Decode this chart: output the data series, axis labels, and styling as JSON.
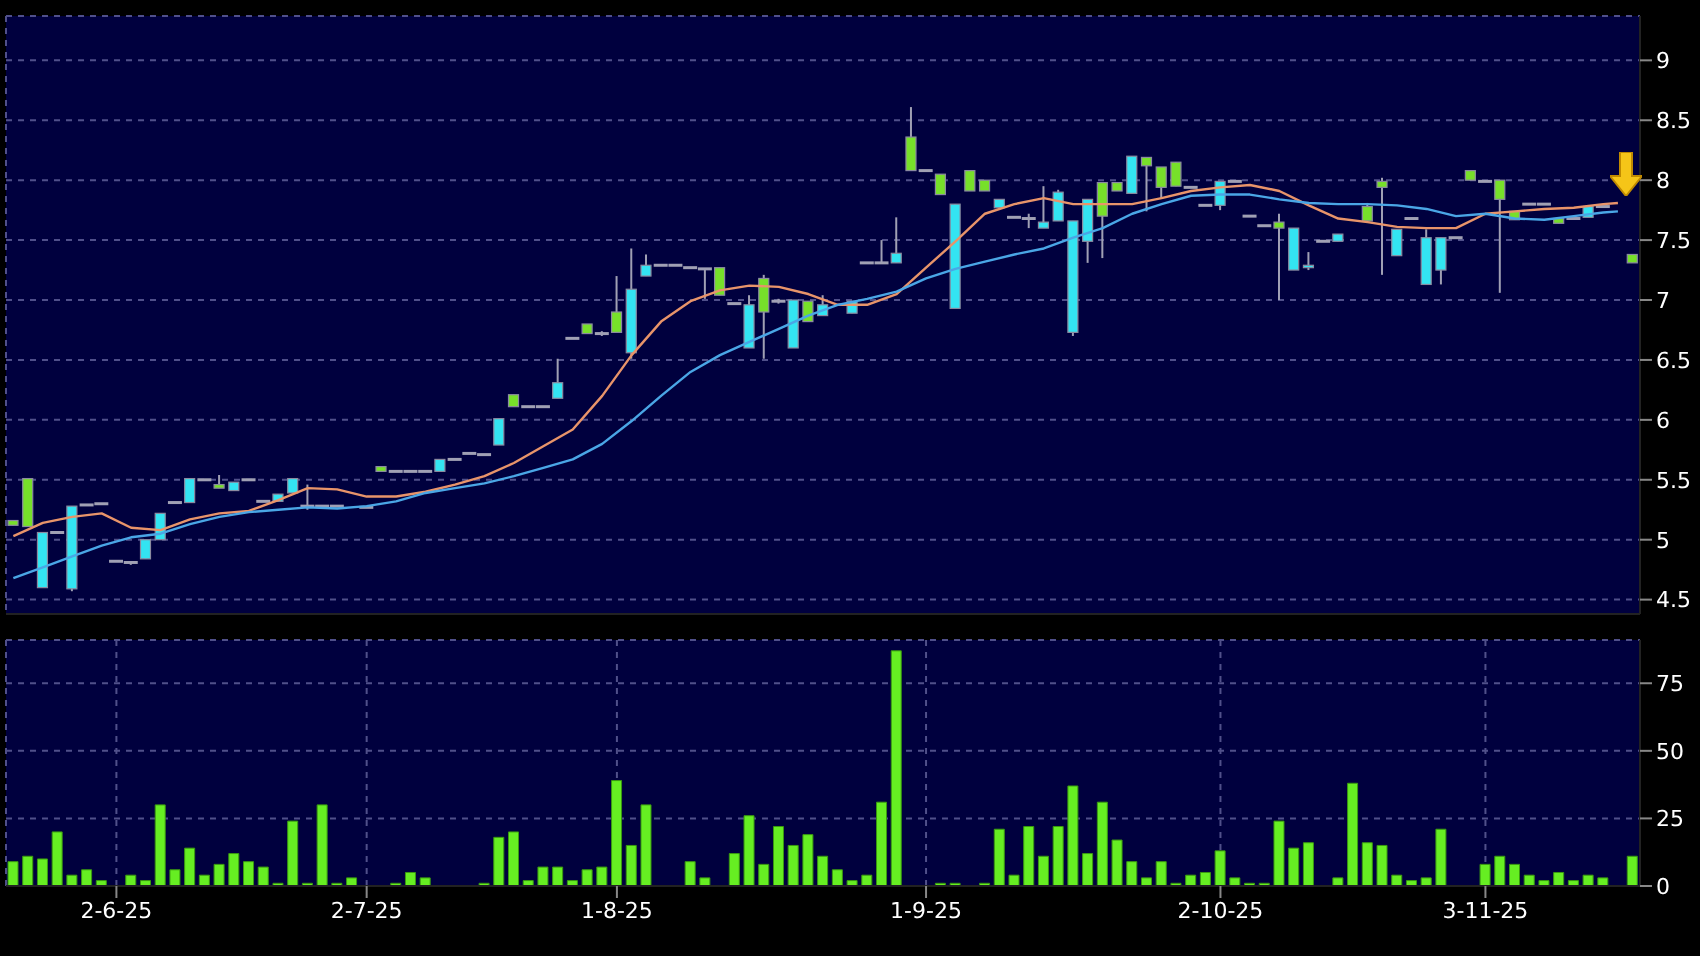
{
  "chart_data": [
    {
      "type": "candlestick",
      "tick_labels": "y",
      "grid": true,
      "ylim": [
        4.38,
        9.37
      ],
      "yticks": [
        4.5,
        5,
        5.5,
        6,
        6.5,
        7,
        7.5,
        8,
        8.5,
        9
      ],
      "categories": [
        null,
        null,
        null,
        null,
        null,
        null,
        null,
        null,
        null,
        null,
        null,
        null,
        null,
        null,
        null,
        null,
        null,
        null,
        null,
        null,
        null,
        null,
        null,
        null,
        null,
        null,
        null,
        null,
        null,
        null,
        null,
        null,
        null,
        null,
        null,
        null,
        null,
        null,
        null,
        null,
        null,
        null,
        null,
        null,
        null,
        null,
        null,
        null,
        null,
        null,
        null,
        null,
        null,
        null,
        null,
        null,
        null,
        null,
        null,
        null,
        null,
        null,
        null,
        null,
        null,
        null,
        null,
        null,
        null,
        null,
        null,
        null,
        null,
        null,
        null,
        null,
        null,
        null,
        null,
        null,
        null,
        null,
        null,
        null,
        null,
        null,
        null,
        null,
        null,
        null,
        null,
        null,
        null,
        null,
        null,
        null,
        null,
        null,
        null,
        null,
        null,
        null,
        null,
        null,
        null,
        null,
        null,
        null,
        null,
        null,
        null
      ],
      "ohlc": [
        [
          5.16,
          5.16,
          5.12,
          5.12
        ],
        [
          5.51,
          5.51,
          5.11,
          5.11
        ],
        [
          4.6,
          5.06,
          4.6,
          5.06
        ],
        [
          5.06,
          5.06,
          5.06,
          5.06
        ],
        [
          4.59,
          5.28,
          4.57,
          5.28
        ],
        [
          5.29,
          5.29,
          5.29,
          5.29
        ],
        [
          5.3,
          5.3,
          5.3,
          5.3
        ],
        [
          4.82,
          4.82,
          4.82,
          4.82
        ],
        [
          4.81,
          4.81,
          4.79,
          4.81
        ],
        [
          4.84,
          5.0,
          4.84,
          5.0
        ],
        [
          5.0,
          5.22,
          5.0,
          5.22
        ],
        [
          5.31,
          5.31,
          5.31,
          5.31
        ],
        [
          5.31,
          5.51,
          5.31,
          5.51
        ],
        [
          5.5,
          5.5,
          5.5,
          5.5
        ],
        [
          5.46,
          5.54,
          5.43,
          5.43
        ],
        [
          5.41,
          5.48,
          5.41,
          5.48
        ],
        [
          5.5,
          5.5,
          5.5,
          5.5
        ],
        [
          5.32,
          5.32,
          5.32,
          5.32
        ],
        [
          5.32,
          5.38,
          5.32,
          5.38
        ],
        [
          5.39,
          5.51,
          5.39,
          5.51
        ],
        [
          5.28,
          5.46,
          5.25,
          5.28
        ],
        [
          5.28,
          5.28,
          5.28,
          5.28
        ],
        [
          5.28,
          5.28,
          5.28,
          5.28
        ],
        null,
        [
          5.27,
          5.27,
          5.27,
          5.27
        ],
        [
          5.61,
          5.61,
          5.57,
          5.57
        ],
        [
          5.57,
          5.57,
          5.57,
          5.57
        ],
        [
          5.57,
          5.57,
          5.57,
          5.57
        ],
        [
          5.57,
          5.57,
          5.57,
          5.57
        ],
        [
          5.57,
          5.67,
          5.57,
          5.67
        ],
        [
          5.67,
          5.67,
          5.67,
          5.67
        ],
        [
          5.72,
          5.72,
          5.72,
          5.72
        ],
        [
          5.71,
          5.71,
          5.71,
          5.71
        ],
        [
          5.79,
          6.01,
          5.79,
          6.01
        ],
        [
          6.21,
          6.21,
          6.11,
          6.11
        ],
        [
          6.11,
          6.11,
          6.11,
          6.11
        ],
        [
          6.11,
          6.11,
          6.11,
          6.11
        ],
        [
          6.18,
          6.51,
          6.18,
          6.31
        ],
        [
          6.68,
          6.68,
          6.68,
          6.68
        ],
        [
          6.8,
          6.8,
          6.72,
          6.72
        ],
        [
          6.72,
          6.74,
          6.7,
          6.72
        ],
        [
          6.9,
          7.2,
          6.73,
          6.73
        ],
        [
          6.56,
          7.43,
          6.51,
          7.09
        ],
        [
          7.2,
          7.38,
          7.2,
          7.29
        ],
        [
          7.29,
          7.29,
          7.29,
          7.29
        ],
        [
          7.29,
          7.29,
          7.29,
          7.29
        ],
        [
          7.27,
          7.27,
          7.27,
          7.27
        ],
        [
          7.26,
          7.26,
          7.01,
          7.26
        ],
        [
          7.27,
          7.27,
          7.04,
          7.04
        ],
        [
          6.97,
          6.97,
          6.97,
          6.97
        ],
        [
          6.6,
          7.04,
          6.6,
          6.96
        ],
        [
          7.18,
          7.21,
          6.51,
          6.9
        ],
        [
          6.99,
          7.01,
          6.97,
          6.99
        ],
        [
          6.6,
          7.0,
          6.6,
          7.0
        ],
        [
          6.99,
          6.99,
          6.82,
          6.82
        ],
        [
          6.87,
          7.04,
          6.87,
          6.96
        ],
        null,
        [
          6.89,
          6.99,
          6.89,
          6.99
        ],
        [
          7.31,
          7.31,
          7.31,
          7.31
        ],
        [
          7.31,
          7.5,
          7.31,
          7.31
        ],
        [
          7.31,
          7.69,
          7.31,
          7.39
        ],
        [
          8.36,
          8.61,
          8.08,
          8.08
        ],
        [
          8.08,
          8.08,
          8.08,
          8.08
        ],
        [
          8.05,
          8.05,
          7.88,
          7.88
        ],
        [
          6.93,
          7.8,
          6.93,
          7.8
        ],
        [
          8.08,
          8.08,
          7.91,
          7.91
        ],
        [
          8.0,
          8.0,
          7.91,
          7.91
        ],
        [
          7.77,
          7.84,
          7.77,
          7.84
        ],
        [
          7.69,
          7.69,
          7.69,
          7.69
        ],
        [
          7.68,
          7.72,
          7.6,
          7.68
        ],
        [
          7.6,
          7.95,
          7.6,
          7.65
        ],
        [
          7.66,
          7.92,
          7.66,
          7.9
        ],
        [
          6.73,
          7.66,
          6.7,
          7.66
        ],
        [
          7.49,
          7.84,
          7.31,
          7.84
        ],
        [
          7.98,
          7.98,
          7.35,
          7.7
        ],
        [
          7.98,
          7.98,
          7.91,
          7.91
        ],
        [
          7.89,
          8.2,
          7.89,
          8.2
        ],
        [
          8.19,
          8.19,
          7.74,
          8.12
        ],
        [
          8.11,
          8.11,
          7.85,
          7.94
        ],
        [
          8.15,
          8.15,
          7.95,
          7.95
        ],
        [
          7.94,
          7.94,
          7.94,
          7.94
        ],
        [
          7.79,
          7.79,
          7.79,
          7.79
        ],
        [
          7.79,
          7.99,
          7.75,
          7.99
        ],
        [
          7.99,
          7.99,
          7.99,
          7.99
        ],
        [
          7.7,
          7.7,
          7.7,
          7.7
        ],
        [
          7.62,
          7.62,
          7.62,
          7.62
        ],
        [
          7.65,
          7.72,
          7.0,
          7.6
        ],
        [
          7.25,
          7.6,
          7.25,
          7.6
        ],
        [
          7.27,
          7.4,
          7.25,
          7.29
        ],
        [
          7.49,
          7.49,
          7.49,
          7.49
        ],
        [
          7.49,
          7.55,
          7.49,
          7.55
        ],
        null,
        [
          7.78,
          7.81,
          7.66,
          7.66
        ],
        [
          7.99,
          8.02,
          7.21,
          7.94
        ],
        [
          7.37,
          7.59,
          7.37,
          7.59
        ],
        [
          7.68,
          7.68,
          7.68,
          7.68
        ],
        [
          7.13,
          7.59,
          7.13,
          7.52
        ],
        [
          7.25,
          7.52,
          7.13,
          7.52
        ],
        [
          7.52,
          7.52,
          7.52,
          7.52
        ],
        [
          8.08,
          8.08,
          8.0,
          8.0
        ],
        [
          7.99,
          7.99,
          7.99,
          7.99
        ],
        [
          8.0,
          8.0,
          7.06,
          7.84
        ],
        [
          7.74,
          7.74,
          7.67,
          7.67
        ],
        [
          7.8,
          7.8,
          7.8,
          7.8
        ],
        [
          7.8,
          7.8,
          7.8,
          7.8
        ],
        [
          7.68,
          7.68,
          7.64,
          7.64
        ],
        [
          7.68,
          7.68,
          7.68,
          7.68
        ],
        [
          7.69,
          7.78,
          7.69,
          7.78
        ],
        [
          7.78,
          7.78,
          7.78,
          7.78
        ],
        null,
        [
          7.38,
          7.38,
          7.31,
          7.31
        ]
      ],
      "colors": [
        "#77e02a",
        "#77e02a",
        "#33e4f2",
        "#a0a0b4",
        "#33e4f2",
        "#a0a0b4",
        "#a0a0b4",
        "#a0a0b4",
        "#a0a0b4",
        "#33e4f2",
        "#33e4f2",
        "#a0a0b4",
        "#33e4f2",
        "#a0a0b4",
        "#77e02a",
        "#33e4f2",
        "#a0a0b4",
        "#a0a0b4",
        "#33e4f2",
        "#33e4f2",
        "#a0a0b4",
        "#a0a0b4",
        "#a0a0b4",
        null,
        "#a0a0b4",
        "#77e02a",
        "#a0a0b4",
        "#a0a0b4",
        "#a0a0b4",
        "#33e4f2",
        "#a0a0b4",
        "#a0a0b4",
        "#a0a0b4",
        "#33e4f2",
        "#77e02a",
        "#a0a0b4",
        "#a0a0b4",
        "#33e4f2",
        "#a0a0b4",
        "#77e02a",
        "#a0a0b4",
        "#77e02a",
        "#33e4f2",
        "#33e4f2",
        "#a0a0b4",
        "#a0a0b4",
        "#a0a0b4",
        "#a0a0b4",
        "#77e02a",
        "#a0a0b4",
        "#33e4f2",
        "#77e02a",
        "#a0a0b4",
        "#33e4f2",
        "#77e02a",
        "#33e4f2",
        null,
        "#33e4f2",
        "#a0a0b4",
        "#a0a0b4",
        "#33e4f2",
        "#77e02a",
        "#a0a0b4",
        "#77e02a",
        "#33e4f2",
        "#77e02a",
        "#77e02a",
        "#33e4f2",
        "#a0a0b4",
        "#a0a0b4",
        "#33e4f2",
        "#33e4f2",
        "#33e4f2",
        "#33e4f2",
        "#77e02a",
        "#77e02a",
        "#33e4f2",
        "#77e02a",
        "#77e02a",
        "#77e02a",
        "#a0a0b4",
        "#a0a0b4",
        "#33e4f2",
        "#a0a0b4",
        "#a0a0b4",
        "#a0a0b4",
        "#77e02a",
        "#33e4f2",
        "#33e4f2",
        "#a0a0b4",
        "#33e4f2",
        null,
        "#77e02a",
        "#77e02a",
        "#33e4f2",
        "#a0a0b4",
        "#33e4f2",
        "#33e4f2",
        "#a0a0b4",
        "#77e02a",
        "#a0a0b4",
        "#77e02a",
        "#77e02a",
        "#a0a0b4",
        "#a0a0b4",
        "#77e02a",
        "#a0a0b4",
        "#33e4f2",
        "#a0a0b4",
        null,
        "#77e02a"
      ],
      "series": [
        {
          "type": "line",
          "color": "#e8946a",
          "values": [
            5.03,
            null,
            5.14,
            null,
            5.19,
            null,
            5.22,
            null,
            5.1,
            null,
            5.08,
            null,
            5.17,
            null,
            5.22,
            null,
            5.24,
            null,
            5.33,
            null,
            5.43,
            null,
            5.42,
            null,
            5.36,
            null,
            5.36,
            null,
            5.4,
            null,
            5.46,
            null,
            5.53,
            null,
            5.64,
            null,
            5.78,
            null,
            5.92,
            null,
            6.2,
            null,
            6.54,
            null,
            6.82,
            null,
            6.99,
            null,
            7.08,
            null,
            7.12,
            null,
            7.11,
            null,
            7.05,
            null,
            6.96,
            null,
            6.96,
            null,
            7.05,
            null,
            7.27,
            null,
            7.49,
            null,
            7.72,
            null,
            7.8,
            null,
            7.85,
            null,
            7.8,
            null,
            7.8,
            null,
            7.8,
            null,
            7.85,
            null,
            7.91,
            null,
            7.94,
            null,
            7.96,
            null,
            7.91,
            null,
            7.79,
            null,
            7.68,
            null,
            7.65,
            null,
            7.61,
            null,
            7.6,
            null,
            7.6,
            null,
            7.72,
            null,
            7.74,
            null,
            7.76,
            null,
            7.77,
            null,
            7.8,
            7.81,
            null
          ]
        },
        {
          "type": "line",
          "color": "#4aa6e6",
          "values": [
            4.68,
            null,
            4.77,
            null,
            4.86,
            null,
            4.95,
            null,
            5.02,
            null,
            5.05,
            null,
            5.13,
            null,
            5.19,
            null,
            5.23,
            null,
            5.25,
            null,
            5.27,
            null,
            5.26,
            null,
            5.28,
            null,
            5.32,
            null,
            5.39,
            null,
            5.43,
            null,
            5.47,
            null,
            5.53,
            null,
            5.6,
            null,
            5.67,
            null,
            5.8,
            null,
            5.99,
            null,
            6.2,
            null,
            6.4,
            null,
            6.54,
            null,
            6.65,
            null,
            6.76,
            null,
            6.87,
            null,
            6.96,
            null,
            7.01,
            null,
            7.07,
            null,
            7.18,
            null,
            7.26,
            null,
            7.32,
            null,
            7.38,
            null,
            7.43,
            null,
            7.52,
            null,
            7.6,
            null,
            7.72,
            null,
            7.8,
            null,
            7.87,
            null,
            7.88,
            null,
            7.88,
            null,
            7.84,
            null,
            7.81,
            null,
            7.8,
            null,
            7.8,
            null,
            7.79,
            null,
            7.76,
            null,
            7.7,
            null,
            7.72,
            null,
            7.68,
            null,
            7.67,
            null,
            7.7,
            null,
            7.73,
            7.74,
            null
          ]
        }
      ]
    },
    {
      "type": "bar",
      "grid": true,
      "color": "#66ee22",
      "ylim": [
        0,
        91
      ],
      "yticks": [
        0,
        25,
        50,
        75
      ],
      "categories": [
        null,
        null,
        null,
        null,
        null,
        null,
        null,
        "2-6-25",
        null,
        null,
        null,
        null,
        null,
        null,
        null,
        null,
        null,
        null,
        null,
        null,
        null,
        null,
        null,
        null,
        "2-7-25",
        null,
        null,
        null,
        null,
        null,
        null,
        null,
        null,
        null,
        null,
        null,
        null,
        null,
        null,
        null,
        null,
        "1-8-25",
        null,
        null,
        null,
        null,
        null,
        null,
        null,
        null,
        null,
        null,
        null,
        null,
        null,
        null,
        null,
        null,
        null,
        null,
        null,
        null,
        "1-9-25",
        null,
        null,
        null,
        null,
        null,
        null,
        null,
        null,
        null,
        null,
        null,
        null,
        null,
        null,
        null,
        null,
        null,
        null,
        null,
        "2-10-25",
        null,
        null,
        null,
        null,
        null,
        null,
        null,
        null,
        null,
        null,
        null,
        null,
        null,
        null,
        null,
        null,
        null,
        "3-11-25",
        null,
        null,
        null,
        null,
        null,
        null,
        null,
        null,
        null,
        null
      ],
      "values": [
        9,
        11,
        10,
        20,
        4,
        6,
        2,
        0,
        4,
        2,
        30,
        6,
        14,
        4,
        8,
        12,
        9,
        7,
        1,
        24,
        1,
        30,
        1,
        3,
        0,
        0,
        1,
        5,
        3,
        0,
        0,
        0,
        1,
        18,
        20,
        2,
        7,
        7,
        2,
        6,
        7,
        39,
        15,
        30,
        0,
        0,
        9,
        3,
        0,
        12,
        26,
        8,
        22,
        15,
        19,
        11,
        6,
        2,
        4,
        31,
        87,
        0,
        0,
        1,
        1,
        0,
        1,
        21,
        4,
        22,
        11,
        22,
        37,
        12,
        31,
        17,
        9,
        3,
        9,
        1,
        4,
        5,
        13,
        3,
        1,
        1,
        24,
        14,
        16,
        0,
        3,
        38,
        16,
        15,
        4,
        2,
        3,
        21,
        0,
        0,
        8,
        11,
        8,
        4,
        2,
        5,
        2,
        4,
        3,
        0,
        11
      ]
    }
  ]
}
